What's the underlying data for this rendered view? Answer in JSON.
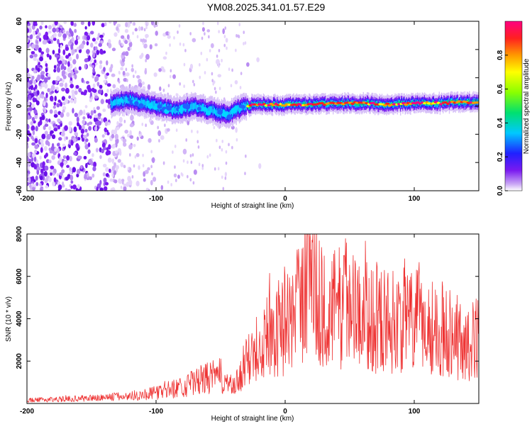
{
  "title": "YM08.2025.341.01.57.E29",
  "chart_data": [
    {
      "type": "heatmap",
      "name": "spectrogram",
      "xlabel": "Height of straight line (km)",
      "ylabel": "Frequency (Hz)",
      "xlim": [
        -200,
        150
      ],
      "ylim": [
        -60,
        60
      ],
      "xticks": [
        -200,
        -100,
        0,
        100
      ],
      "yticks": [
        -60,
        -40,
        -20,
        0,
        20,
        40,
        60
      ],
      "colorbar": {
        "label": "Normalized spectral amplitude",
        "range": [
          0,
          1
        ],
        "ticks": [
          "0.0",
          "0.2",
          "0.4",
          "0.6",
          "0.8"
        ],
        "colors": [
          "#ffffff",
          "#c9a6f5",
          "#7a1af0",
          "#2020ff",
          "#00c8ff",
          "#00e070",
          "#8aff00",
          "#ffff00",
          "#ff9900",
          "#ff2020",
          "#ff0080"
        ]
      },
      "ridge": {
        "x": [
          -135,
          -120,
          -100,
          -85,
          -70,
          -55,
          -45,
          -38,
          -30,
          -20,
          0,
          20,
          40,
          60,
          80,
          100,
          120,
          150
        ],
        "freq": [
          2,
          4,
          0,
          -3,
          0,
          -4,
          -6,
          -3,
          0,
          1,
          1,
          1,
          2,
          2,
          1,
          2,
          2,
          3
        ]
      }
    },
    {
      "type": "line",
      "name": "snr",
      "xlabel": "Height of straight line (km)",
      "ylabel": "SNR (10 * v/v)",
      "xlim": [
        -200,
        150
      ],
      "ylim": [
        0,
        8000
      ],
      "xticks": [
        -200,
        -100,
        0,
        100
      ],
      "yticks": [
        2000,
        4000,
        6000,
        8000
      ],
      "color": "#ee3333",
      "envelope": {
        "x": [
          -200,
          -150,
          -120,
          -100,
          -80,
          -60,
          -50,
          -40,
          -30,
          -20,
          -10,
          0,
          10,
          20,
          30,
          40,
          50,
          60,
          80,
          100,
          120,
          130,
          140,
          150
        ],
        "y": [
          150,
          250,
          350,
          500,
          800,
          1200,
          1300,
          700,
          1800,
          3000,
          3400,
          3700,
          4500,
          6200,
          4300,
          4500,
          4700,
          4100,
          3900,
          3900,
          3500,
          3400,
          2600,
          3200
        ]
      }
    }
  ]
}
